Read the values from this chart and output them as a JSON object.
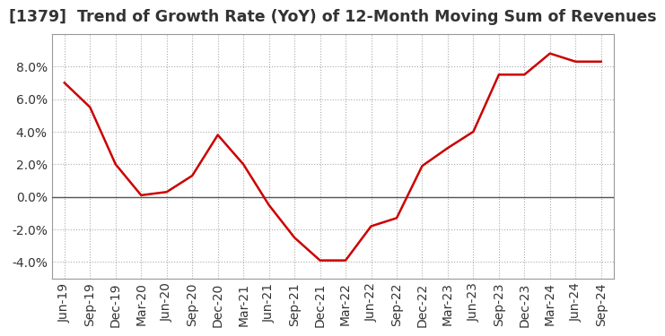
{
  "title": "[1379]  Trend of Growth Rate (YoY) of 12-Month Moving Sum of Revenues",
  "x_labels": [
    "Jun-19",
    "Sep-19",
    "Dec-19",
    "Mar-20",
    "Jun-20",
    "Sep-20",
    "Dec-20",
    "Mar-21",
    "Jun-21",
    "Sep-21",
    "Dec-21",
    "Mar-22",
    "Jun-22",
    "Sep-22",
    "Dec-22",
    "Mar-23",
    "Jun-23",
    "Sep-23",
    "Dec-23",
    "Mar-24",
    "Jun-24",
    "Sep-24"
  ],
  "y_values": [
    0.07,
    0.055,
    0.02,
    0.001,
    0.003,
    0.013,
    0.038,
    0.02,
    -0.005,
    -0.025,
    -0.039,
    -0.039,
    -0.018,
    -0.013,
    0.019,
    0.03,
    0.04,
    0.075,
    0.075,
    0.088,
    0.083,
    0.083
  ],
  "line_color": "#cc0000",
  "line_width": 1.8,
  "ylim": [
    -0.05,
    0.1
  ],
  "yticks": [
    -0.04,
    -0.02,
    0.0,
    0.02,
    0.04,
    0.06,
    0.08
  ],
  "background_color": "#ffffff",
  "plot_bg_color": "#ffffff",
  "grid_color": "#aaaaaa",
  "title_fontsize": 12.5,
  "tick_fontsize": 10,
  "zero_line_color": "#555555",
  "title_color": "#333333"
}
